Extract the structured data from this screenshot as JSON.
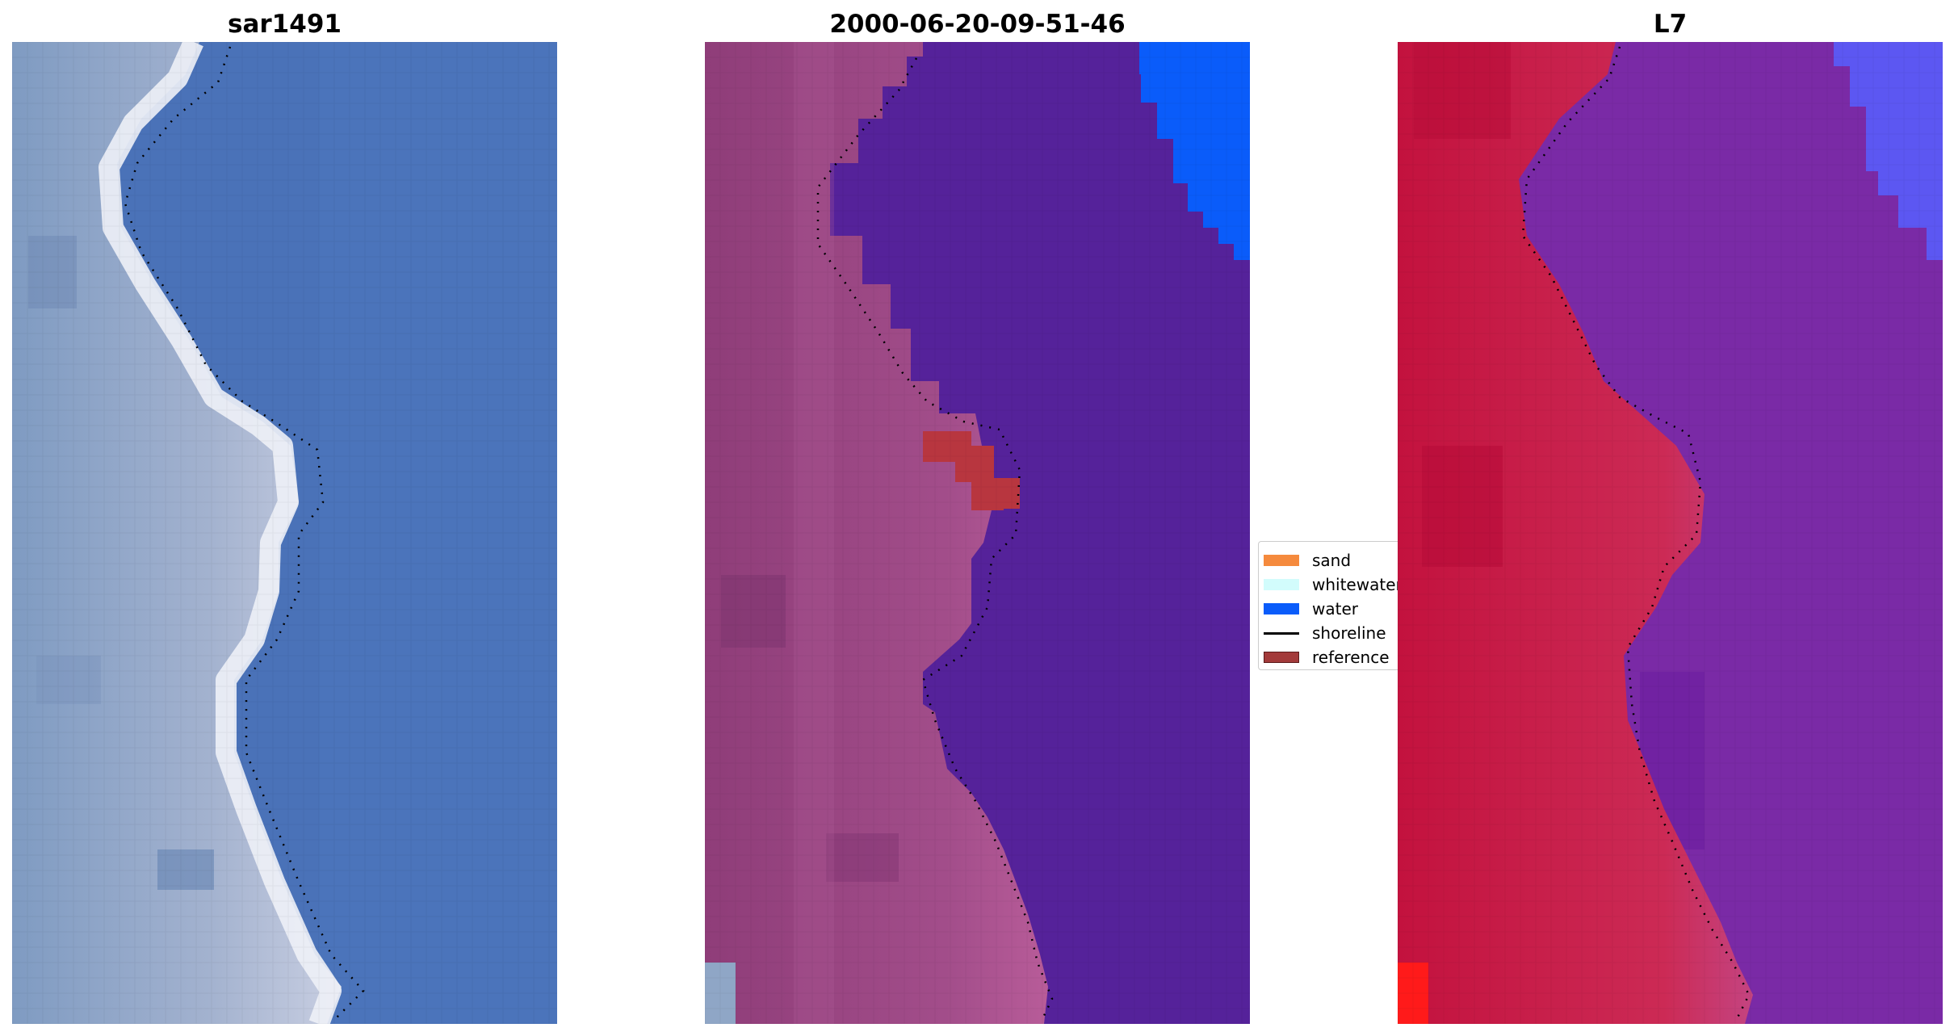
{
  "panels": [
    {
      "title": "sar1491"
    },
    {
      "title": "2000-06-20-09-51-46"
    },
    {
      "title": "L7"
    }
  ],
  "legend": {
    "items": [
      {
        "label": "sand",
        "color": "#f58a3d",
        "kind": "patch"
      },
      {
        "label": "whitewater",
        "color": "#d2fcfc",
        "kind": "patch"
      },
      {
        "label": "water",
        "color": "#0a5cfa",
        "kind": "patch"
      },
      {
        "label": "shoreline",
        "color": "#000000",
        "kind": "line"
      },
      {
        "label": "reference",
        "color": "#a33a3a",
        "kind": "patch"
      }
    ]
  },
  "colors": {
    "sar_water": "#4a72b8",
    "sar_land": "#8fa6c6",
    "sar_foam": "#eef1f7",
    "class_land": "#9e4a86",
    "class_water": "#55229a",
    "class_water_flag": "#0a5cfa",
    "class_reference": "#b8363f",
    "l7_land": "#c3123e",
    "l7_water": "#7a2aa6",
    "l7_water_bright": "#5c57f2",
    "l7_hot": "#ff1a1a"
  }
}
